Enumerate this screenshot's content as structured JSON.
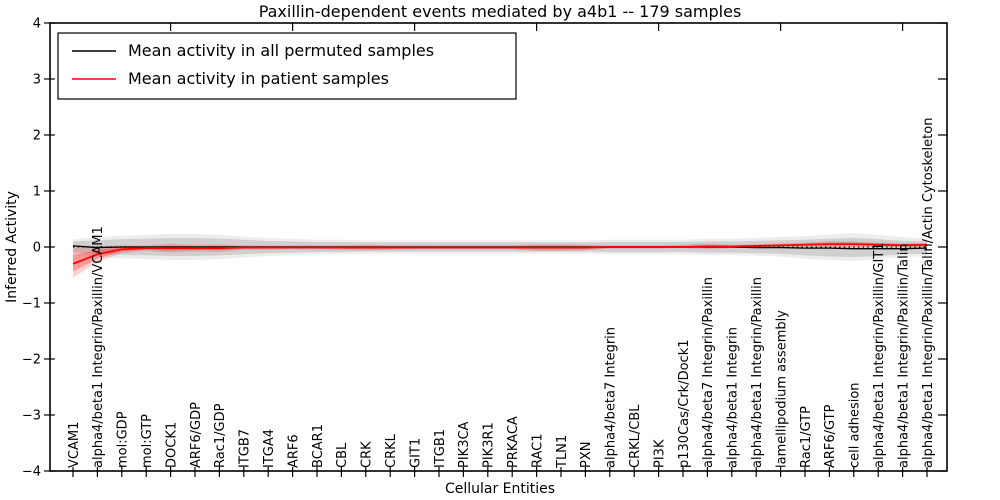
{
  "chart_data": {
    "type": "line",
    "title": "Paxillin-dependent events mediated by a4b1 -- 179 samples",
    "xlabel": "Cellular Entities",
    "ylabel": "Inferred Activity",
    "ylim": [
      -4,
      4
    ],
    "grid": false,
    "legend_position": "upper left",
    "zero_reference_line": "dotted",
    "yticks": [
      {
        "value": -4,
        "label": "−4"
      },
      {
        "value": -3,
        "label": "−3"
      },
      {
        "value": -2,
        "label": "−2"
      },
      {
        "value": -1,
        "label": "−1"
      },
      {
        "value": 0,
        "label": "0"
      },
      {
        "value": 1,
        "label": "1"
      },
      {
        "value": 2,
        "label": "2"
      },
      {
        "value": 3,
        "label": "3"
      },
      {
        "value": 4,
        "label": "4"
      }
    ],
    "top_axis_tick_positions": [
      5,
      10,
      15,
      20,
      25,
      30,
      35
    ],
    "categories": [
      "VCAM1",
      "alpha4/beta1 Integrin/Paxillin/VCAM1",
      "mol:GDP",
      "mol:GTP",
      "DOCK1",
      "ARF6/GDP",
      "Rac1/GDP",
      "ITGB7",
      "ITGA4",
      "ARF6",
      "BCAR1",
      "CBL",
      "CRK",
      "CRKL",
      "GIT1",
      "ITGB1",
      "PIK3CA",
      "PIK3R1",
      "PRKACA",
      "RAC1",
      "TLN1",
      "PXN",
      "alpha4/beta7 Integrin",
      "CRKL/CBL",
      "PI3K",
      "p130Cas/Crk/Dock1",
      "alpha4/beta7 Integrin/Paxillin",
      "alpha4/beta1 Integrin",
      "alpha4/beta1 Integrin/Paxillin",
      "lamellipodium assembly",
      "Rac1/GTP",
      "ARF6/GTP",
      "cell adhesion",
      "alpha4/beta1 Integrin/Paxillin/GIT1",
      "alpha4/beta1 Integrin/Paxillin/Talin",
      "alpha4/beta1 Integrin/Paxillin/Talin/Actin Cytoskeleton"
    ],
    "series": [
      {
        "name": "Mean activity in all permuted samples",
        "color": "#000000",
        "values": [
          0.02,
          -0.01,
          0,
          0,
          0,
          0,
          0,
          0,
          0,
          0,
          0,
          0,
          0,
          0,
          0,
          0,
          0,
          0,
          0,
          0,
          0,
          0,
          0,
          0,
          0,
          0,
          0,
          0,
          -0.01,
          -0.01,
          -0.02,
          -0.02,
          -0.03,
          -0.03,
          -0.03,
          -0.02
        ],
        "band_hi": [
          0.1,
          0.12,
          0.14,
          0.15,
          0.16,
          0.16,
          0.15,
          0.13,
          0.11,
          0.1,
          0.09,
          0.09,
          0.08,
          0.08,
          0.08,
          0.08,
          0.08,
          0.08,
          0.08,
          0.08,
          0.08,
          0.08,
          0.09,
          0.09,
          0.09,
          0.09,
          0.1,
          0.1,
          0.11,
          0.12,
          0.13,
          0.15,
          0.16,
          0.14,
          0.11,
          0.1
        ],
        "band_lo": [
          -0.1,
          -0.12,
          -0.14,
          -0.15,
          -0.16,
          -0.16,
          -0.15,
          -0.13,
          -0.11,
          -0.1,
          -0.09,
          -0.09,
          -0.08,
          -0.08,
          -0.08,
          -0.08,
          -0.08,
          -0.08,
          -0.08,
          -0.08,
          -0.08,
          -0.08,
          -0.09,
          -0.09,
          -0.09,
          -0.09,
          -0.1,
          -0.1,
          -0.11,
          -0.12,
          -0.15,
          -0.17,
          -0.18,
          -0.16,
          -0.13,
          -0.12
        ]
      },
      {
        "name": "Mean activity in patient samples",
        "color": "#ff0000",
        "values": [
          -0.3,
          -0.13,
          -0.04,
          -0.02,
          -0.02,
          -0.02,
          -0.02,
          -0.01,
          -0.01,
          -0.01,
          -0.01,
          -0.01,
          -0.01,
          -0.01,
          -0.01,
          -0.01,
          -0.01,
          -0.01,
          -0.01,
          -0.01,
          -0.01,
          -0.01,
          0,
          0,
          0,
          0,
          0.01,
          0.01,
          0.02,
          0.03,
          0.04,
          0.05,
          0.05,
          0.04,
          0.03,
          0.04
        ],
        "band_hi": [
          -0.02,
          0.01,
          0.03,
          0.03,
          0.06,
          0.04,
          0.05,
          0.03,
          0.03,
          0.03,
          0.03,
          0.03,
          0.04,
          0.03,
          0.03,
          0.03,
          0.03,
          0.03,
          0.03,
          0.05,
          0.05,
          0.04,
          0.03,
          0.03,
          0.03,
          0.04,
          0.06,
          0.04,
          0.05,
          0.06,
          0.08,
          0.1,
          0.1,
          0.08,
          0.07,
          0.07
        ],
        "band_lo": [
          -0.55,
          -0.27,
          -0.11,
          -0.07,
          -0.1,
          -0.08,
          -0.09,
          -0.05,
          -0.05,
          -0.04,
          -0.04,
          -0.05,
          -0.06,
          -0.05,
          -0.04,
          -0.04,
          -0.04,
          -0.04,
          -0.04,
          -0.07,
          -0.07,
          -0.06,
          -0.03,
          -0.03,
          -0.03,
          -0.02,
          -0.04,
          -0.02,
          -0.01,
          0.0,
          0.01,
          0.01,
          0.01,
          0.01,
          0.0,
          0.01
        ]
      }
    ]
  }
}
